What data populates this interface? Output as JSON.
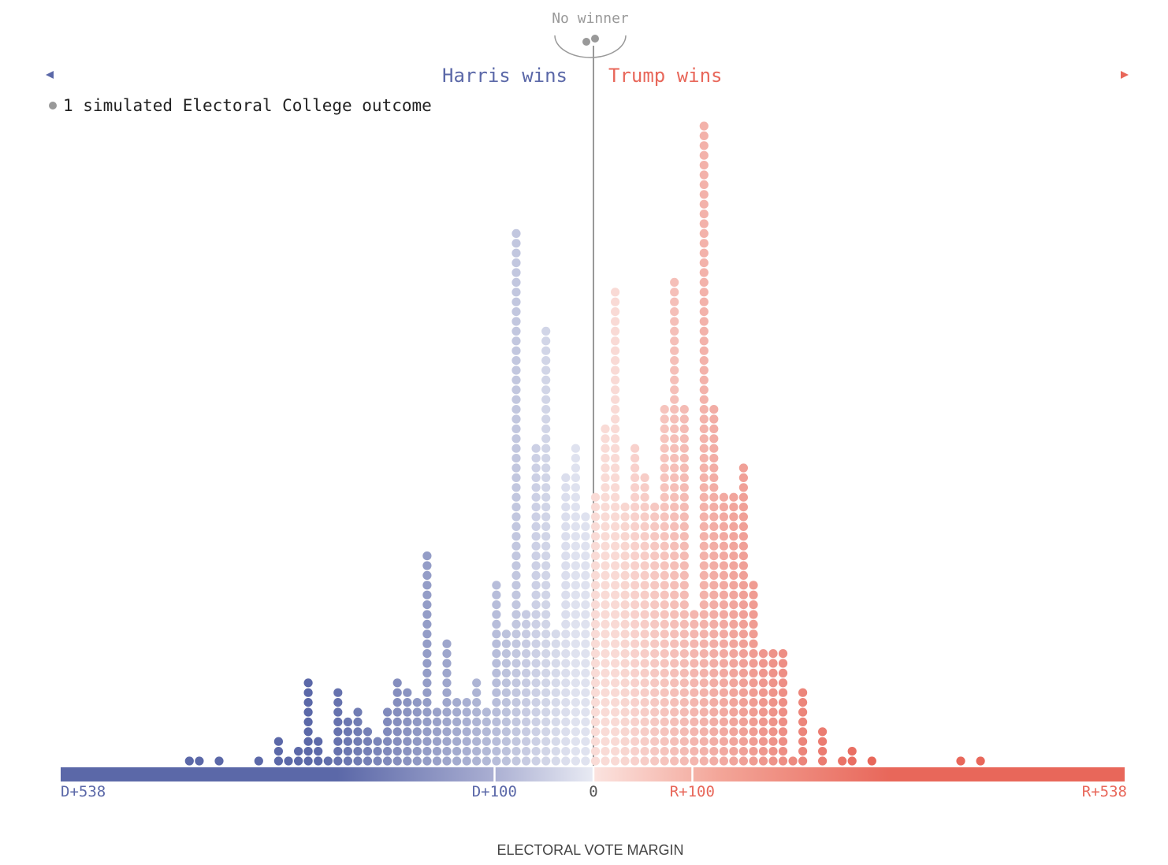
{
  "annotations": {
    "no_winner": "No winner",
    "harris_wins": "Harris wins",
    "trump_wins": "Trump wins",
    "legend": "1 simulated Electoral College outcome"
  },
  "colors": {
    "dem_dark": "#5b68a8",
    "dem_light": "#dfe2ef",
    "rep_light": "#f9dbd6",
    "rep_dark": "#e8675a",
    "neutral": "#999999",
    "axis_text": "#555555"
  },
  "chart_data": {
    "type": "scatter",
    "subtype": "dot histogram",
    "xlabel": "ELECTORAL VOTE MARGIN",
    "xlim": [
      -538,
      538
    ],
    "ticks": [
      {
        "value": -538,
        "label": "D+538"
      },
      {
        "value": -100,
        "label": "D+100"
      },
      {
        "value": 0,
        "label": "0"
      },
      {
        "value": 100,
        "label": "R+100"
      },
      {
        "value": 538,
        "label": "R+538"
      }
    ],
    "unit": "1 dot = 1 simulated Electoral College outcome",
    "no_winner_count": 2,
    "bins": [
      {
        "x": -408,
        "count": 1
      },
      {
        "x": -398,
        "count": 1
      },
      {
        "x": -378,
        "count": 1
      },
      {
        "x": -338,
        "count": 1
      },
      {
        "x": -318,
        "count": 3
      },
      {
        "x": -308,
        "count": 1
      },
      {
        "x": -298,
        "count": 2
      },
      {
        "x": -288,
        "count": 9
      },
      {
        "x": -278,
        "count": 3
      },
      {
        "x": -268,
        "count": 1
      },
      {
        "x": -258,
        "count": 8
      },
      {
        "x": -248,
        "count": 5
      },
      {
        "x": -238,
        "count": 6
      },
      {
        "x": -228,
        "count": 4
      },
      {
        "x": -218,
        "count": 3
      },
      {
        "x": -208,
        "count": 6
      },
      {
        "x": -198,
        "count": 9
      },
      {
        "x": -188,
        "count": 8
      },
      {
        "x": -178,
        "count": 7
      },
      {
        "x": -168,
        "count": 22
      },
      {
        "x": -158,
        "count": 6
      },
      {
        "x": -148,
        "count": 13
      },
      {
        "x": -138,
        "count": 7
      },
      {
        "x": -128,
        "count": 7
      },
      {
        "x": -118,
        "count": 9
      },
      {
        "x": -108,
        "count": 6
      },
      {
        "x": -98,
        "count": 19
      },
      {
        "x": -88,
        "count": 14
      },
      {
        "x": -78,
        "count": 55
      },
      {
        "x": -68,
        "count": 16
      },
      {
        "x": -58,
        "count": 33
      },
      {
        "x": -48,
        "count": 45
      },
      {
        "x": -38,
        "count": 14
      },
      {
        "x": -28,
        "count": 30
      },
      {
        "x": -18,
        "count": 33
      },
      {
        "x": -8,
        "count": 26
      },
      {
        "x": 2,
        "count": 28
      },
      {
        "x": 12,
        "count": 35
      },
      {
        "x": 22,
        "count": 49
      },
      {
        "x": 32,
        "count": 27
      },
      {
        "x": 42,
        "count": 33
      },
      {
        "x": 52,
        "count": 30
      },
      {
        "x": 62,
        "count": 27
      },
      {
        "x": 72,
        "count": 37
      },
      {
        "x": 82,
        "count": 50
      },
      {
        "x": 92,
        "count": 37
      },
      {
        "x": 102,
        "count": 16
      },
      {
        "x": 112,
        "count": 66
      },
      {
        "x": 122,
        "count": 37
      },
      {
        "x": 132,
        "count": 28
      },
      {
        "x": 142,
        "count": 28
      },
      {
        "x": 152,
        "count": 31
      },
      {
        "x": 162,
        "count": 19
      },
      {
        "x": 172,
        "count": 12
      },
      {
        "x": 182,
        "count": 12
      },
      {
        "x": 192,
        "count": 12
      },
      {
        "x": 202,
        "count": 1
      },
      {
        "x": 212,
        "count": 8
      },
      {
        "x": 232,
        "count": 4
      },
      {
        "x": 252,
        "count": 1
      },
      {
        "x": 262,
        "count": 2
      },
      {
        "x": 282,
        "count": 1
      },
      {
        "x": 372,
        "count": 1
      },
      {
        "x": 392,
        "count": 1
      }
    ]
  }
}
